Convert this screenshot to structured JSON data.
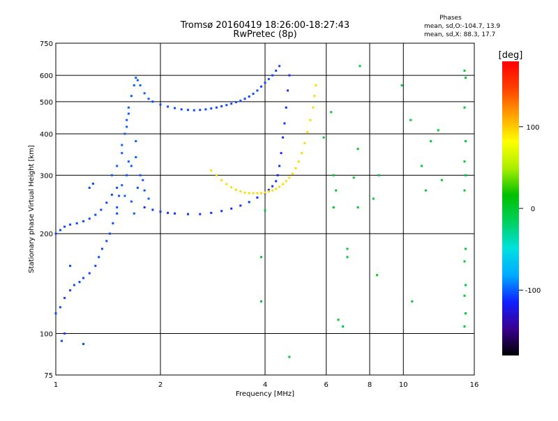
{
  "chart_data": {
    "type": "scatter",
    "title": "Tromsø 20160419 18:26:00-18:27:43",
    "subtitle": "RwPretec (8p)",
    "stats": {
      "heading": "Phases",
      "line_o": "mean, sd,O:-104.7, 13.9",
      "line_x": "mean, sd,X:  88.3, 17.7"
    },
    "xlabel": "Frequency [MHz]",
    "ylabel": "Stationary phase Virtual Height [km]",
    "x_scale": "log",
    "y_scale": "log",
    "xlim": [
      1,
      16
    ],
    "ylim": [
      75,
      750
    ],
    "grid": true,
    "x_ticks": [
      1,
      2,
      4,
      6,
      8,
      10,
      16
    ],
    "x_tick_labels": [
      "1",
      "2",
      "4",
      "6",
      "8",
      "10",
      "16"
    ],
    "y_ticks": [
      75,
      100,
      200,
      300,
      400,
      500,
      600,
      750
    ],
    "y_tick_labels": [
      "75",
      "100",
      "200",
      "300",
      "400",
      "500",
      "600",
      "750"
    ],
    "colorbar": {
      "label": "[deg]",
      "range": [
        -180,
        180
      ],
      "ticks": [
        100,
        0,
        -100
      ],
      "tick_labels": [
        "100",
        "0",
        "-100"
      ],
      "stops": [
        "#000000",
        "#3a0090",
        "#1020ff",
        "#00aaff",
        "#00e0e0",
        "#00d060",
        "#00c000",
        "#aaee00",
        "#ffff00",
        "#ffa000",
        "#ff4000",
        "#ff0000"
      ]
    },
    "series": [
      {
        "trace": "low-frequency trace 1.0–1.5 MHz (O)",
        "phase_deg": -105,
        "points": [
          [
            1.0,
            200
          ],
          [
            1.03,
            205
          ],
          [
            1.06,
            210
          ],
          [
            1.1,
            213
          ],
          [
            1.15,
            215
          ],
          [
            1.2,
            218
          ],
          [
            1.25,
            222
          ],
          [
            1.3,
            228
          ],
          [
            1.35,
            236
          ],
          [
            1.4,
            248
          ],
          [
            1.45,
            262
          ],
          [
            1.5,
            275
          ],
          [
            1.0,
            115
          ],
          [
            1.03,
            120
          ],
          [
            1.06,
            128
          ],
          [
            1.1,
            135
          ],
          [
            1.13,
            140
          ],
          [
            1.17,
            143
          ],
          [
            1.2,
            147
          ],
          [
            1.25,
            152
          ],
          [
            1.3,
            160
          ],
          [
            1.33,
            170
          ],
          [
            1.36,
            180
          ],
          [
            1.4,
            190
          ],
          [
            1.43,
            200
          ],
          [
            1.46,
            215
          ],
          [
            1.5,
            230
          ],
          [
            1.06,
            100
          ],
          [
            1.04,
            95
          ],
          [
            1.2,
            93
          ],
          [
            1.1,
            160
          ],
          [
            1.25,
            275
          ],
          [
            1.28,
            283
          ]
        ]
      },
      {
        "trace": "spread echoes 1.4–1.9 MHz (O)",
        "phase_deg": -100,
        "points": [
          [
            1.45,
            300
          ],
          [
            1.5,
            320
          ],
          [
            1.55,
            350
          ],
          [
            1.58,
            400
          ],
          [
            1.6,
            440
          ],
          [
            1.62,
            480
          ],
          [
            1.65,
            520
          ],
          [
            1.68,
            560
          ],
          [
            1.7,
            590
          ],
          [
            1.72,
            580
          ],
          [
            1.75,
            560
          ],
          [
            1.8,
            530
          ],
          [
            1.85,
            510
          ],
          [
            1.52,
            260
          ],
          [
            1.55,
            280
          ],
          [
            1.6,
            300
          ],
          [
            1.65,
            320
          ],
          [
            1.7,
            340
          ],
          [
            1.55,
            370
          ],
          [
            1.6,
            420
          ],
          [
            1.62,
            460
          ],
          [
            1.7,
            380
          ],
          [
            1.75,
            300
          ],
          [
            1.8,
            270
          ],
          [
            1.85,
            255
          ],
          [
            1.5,
            240
          ],
          [
            1.58,
            260
          ],
          [
            1.65,
            250
          ],
          [
            1.72,
            275
          ],
          [
            1.78,
            290
          ],
          [
            1.68,
            230
          ],
          [
            1.62,
            330
          ]
        ]
      },
      {
        "trace": "F trace 1.8–4.3 MHz upper (O)",
        "phase_deg": -105,
        "points": [
          [
            1.9,
            500
          ],
          [
            2.0,
            490
          ],
          [
            2.1,
            483
          ],
          [
            2.2,
            478
          ],
          [
            2.3,
            474
          ],
          [
            2.4,
            472
          ],
          [
            2.5,
            471
          ],
          [
            2.6,
            472
          ],
          [
            2.7,
            474
          ],
          [
            2.8,
            477
          ],
          [
            2.9,
            480
          ],
          [
            3.0,
            484
          ],
          [
            3.1,
            488
          ],
          [
            3.2,
            493
          ],
          [
            3.3,
            498
          ],
          [
            3.4,
            503
          ],
          [
            3.5,
            510
          ],
          [
            3.6,
            518
          ],
          [
            3.7,
            528
          ],
          [
            3.8,
            540
          ],
          [
            3.9,
            555
          ],
          [
            4.0,
            570
          ],
          [
            4.1,
            585
          ],
          [
            4.2,
            600
          ],
          [
            4.3,
            620
          ],
          [
            4.4,
            640
          ]
        ]
      },
      {
        "trace": "F trace 1.8–4.7 MHz lower (O)",
        "phase_deg": -110,
        "points": [
          [
            1.8,
            240
          ],
          [
            1.9,
            236
          ],
          [
            2.0,
            233
          ],
          [
            2.1,
            231
          ],
          [
            2.2,
            230
          ],
          [
            2.4,
            229
          ],
          [
            2.6,
            229
          ],
          [
            2.8,
            231
          ],
          [
            3.0,
            234
          ],
          [
            3.2,
            238
          ],
          [
            3.4,
            243
          ],
          [
            3.6,
            249
          ],
          [
            3.8,
            257
          ],
          [
            4.0,
            265
          ],
          [
            4.1,
            271
          ],
          [
            4.2,
            278
          ],
          [
            4.3,
            288
          ],
          [
            4.35,
            300
          ],
          [
            4.4,
            320
          ],
          [
            4.45,
            350
          ],
          [
            4.5,
            390
          ],
          [
            4.55,
            430
          ],
          [
            4.6,
            480
          ],
          [
            4.65,
            540
          ],
          [
            4.7,
            600
          ]
        ]
      },
      {
        "trace": "X-mode trace 2.8–5.7 MHz",
        "phase_deg": 95,
        "points": [
          [
            2.8,
            310
          ],
          [
            2.9,
            300
          ],
          [
            3.0,
            290
          ],
          [
            3.1,
            282
          ],
          [
            3.2,
            276
          ],
          [
            3.3,
            271
          ],
          [
            3.4,
            268
          ],
          [
            3.5,
            266
          ],
          [
            3.6,
            265
          ],
          [
            3.7,
            265
          ],
          [
            3.8,
            265
          ],
          [
            3.9,
            265
          ],
          [
            4.0,
            266
          ],
          [
            4.1,
            268
          ],
          [
            4.2,
            270
          ],
          [
            4.3,
            273
          ],
          [
            4.4,
            277
          ],
          [
            4.5,
            282
          ],
          [
            4.6,
            288
          ],
          [
            4.7,
            295
          ],
          [
            4.8,
            303
          ],
          [
            4.9,
            315
          ],
          [
            5.0,
            330
          ],
          [
            5.1,
            350
          ],
          [
            5.2,
            375
          ],
          [
            5.3,
            405
          ],
          [
            5.4,
            440
          ],
          [
            5.5,
            480
          ],
          [
            5.55,
            520
          ],
          [
            5.6,
            560
          ]
        ]
      },
      {
        "trace": "scattered returns",
        "phase_deg": 0,
        "points": [
          [
            3.9,
            170
          ],
          [
            3.9,
            125
          ],
          [
            4.7,
            85
          ],
          [
            4.0,
            235
          ],
          [
            5.9,
            390
          ],
          [
            6.3,
            300
          ],
          [
            6.4,
            270
          ],
          [
            6.3,
            240
          ],
          [
            6.9,
            180
          ],
          [
            6.9,
            170
          ],
          [
            7.2,
            295
          ],
          [
            7.4,
            360
          ],
          [
            7.4,
            240
          ],
          [
            7.5,
            640
          ],
          [
            8.2,
            255
          ],
          [
            8.5,
            300
          ],
          [
            9.9,
            560
          ],
          [
            10.5,
            440
          ],
          [
            10.6,
            125
          ],
          [
            11.3,
            320
          ],
          [
            11.6,
            270
          ],
          [
            12.0,
            380
          ],
          [
            12.6,
            410
          ],
          [
            12.9,
            290
          ],
          [
            15.0,
            620
          ],
          [
            15.1,
            590
          ],
          [
            15.0,
            480
          ],
          [
            15.1,
            380
          ],
          [
            15.0,
            330
          ],
          [
            15.1,
            300
          ],
          [
            15.0,
            270
          ],
          [
            15.1,
            180
          ],
          [
            15.0,
            165
          ],
          [
            15.1,
            140
          ],
          [
            15.0,
            130
          ],
          [
            15.1,
            115
          ],
          [
            15.0,
            105
          ],
          [
            6.5,
            110
          ],
          [
            6.7,
            105
          ],
          [
            8.4,
            150
          ],
          [
            6.2,
            465
          ]
        ]
      }
    ]
  }
}
